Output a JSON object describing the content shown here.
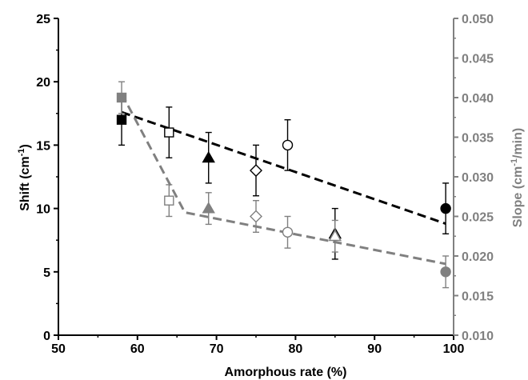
{
  "chart_data": {
    "type": "scatter",
    "xlabel": "Amorphous rate (%)",
    "ylabel_left": {
      "main": "Shift (cm",
      "sup": "-1",
      "end": ")"
    },
    "ylabel_right": {
      "main": "Slope (cm",
      "sup": "-1",
      "end": "/min)"
    },
    "xlim": [
      50,
      100
    ],
    "ylim_left": [
      0,
      25
    ],
    "ylim_right": [
      0.01,
      0.05
    ],
    "xticks": [
      "50",
      "60",
      "70",
      "80",
      "90",
      "100"
    ],
    "yticks_left": [
      "0",
      "5",
      "10",
      "15",
      "20",
      "25"
    ],
    "yticks_right": [
      "0.010",
      "0.015",
      "0.020",
      "0.025",
      "0.030",
      "0.035",
      "0.040",
      "0.045",
      "0.050"
    ],
    "series": [
      {
        "axis": "left",
        "color": "#000000",
        "points": [
          {
            "x": 58,
            "y": 17,
            "err": 2,
            "marker": "square",
            "filled": true
          },
          {
            "x": 64,
            "y": 16,
            "err": 2,
            "marker": "square",
            "filled": false
          },
          {
            "x": 69,
            "y": 14,
            "err": 2,
            "marker": "triangle",
            "filled": true
          },
          {
            "x": 75,
            "y": 13,
            "err": 2,
            "marker": "diamond",
            "filled": false
          },
          {
            "x": 79,
            "y": 15,
            "err": 2,
            "marker": "circle",
            "filled": false
          },
          {
            "x": 85,
            "y": 8,
            "err": 2,
            "marker": "triangle",
            "filled": false
          },
          {
            "x": 99,
            "y": 10,
            "err": 2,
            "marker": "circle",
            "filled": true
          }
        ],
        "trend": [
          [
            58,
            17.6
          ],
          [
            99,
            8.8
          ]
        ]
      },
      {
        "axis": "right",
        "color": "#808080",
        "points": [
          {
            "x": 58,
            "y": 0.04,
            "err": 0.002,
            "marker": "square",
            "filled": true
          },
          {
            "x": 64,
            "y": 0.027,
            "err": 0.002,
            "marker": "square",
            "filled": false
          },
          {
            "x": 69,
            "y": 0.026,
            "err": 0.002,
            "marker": "triangle",
            "filled": true
          },
          {
            "x": 75,
            "y": 0.025,
            "err": 0.002,
            "marker": "diamond",
            "filled": false
          },
          {
            "x": 79,
            "y": 0.023,
            "err": 0.002,
            "marker": "circle",
            "filled": false
          },
          {
            "x": 85,
            "y": 0.0225,
            "err": 0.002,
            "marker": "triangle",
            "filled": false
          },
          {
            "x": 99,
            "y": 0.018,
            "err": 0.002,
            "marker": "circle",
            "filled": true
          }
        ],
        "trend": [
          [
            58,
            0.0405
          ],
          [
            66,
            0.0255
          ],
          [
            99,
            0.019
          ]
        ]
      }
    ]
  }
}
